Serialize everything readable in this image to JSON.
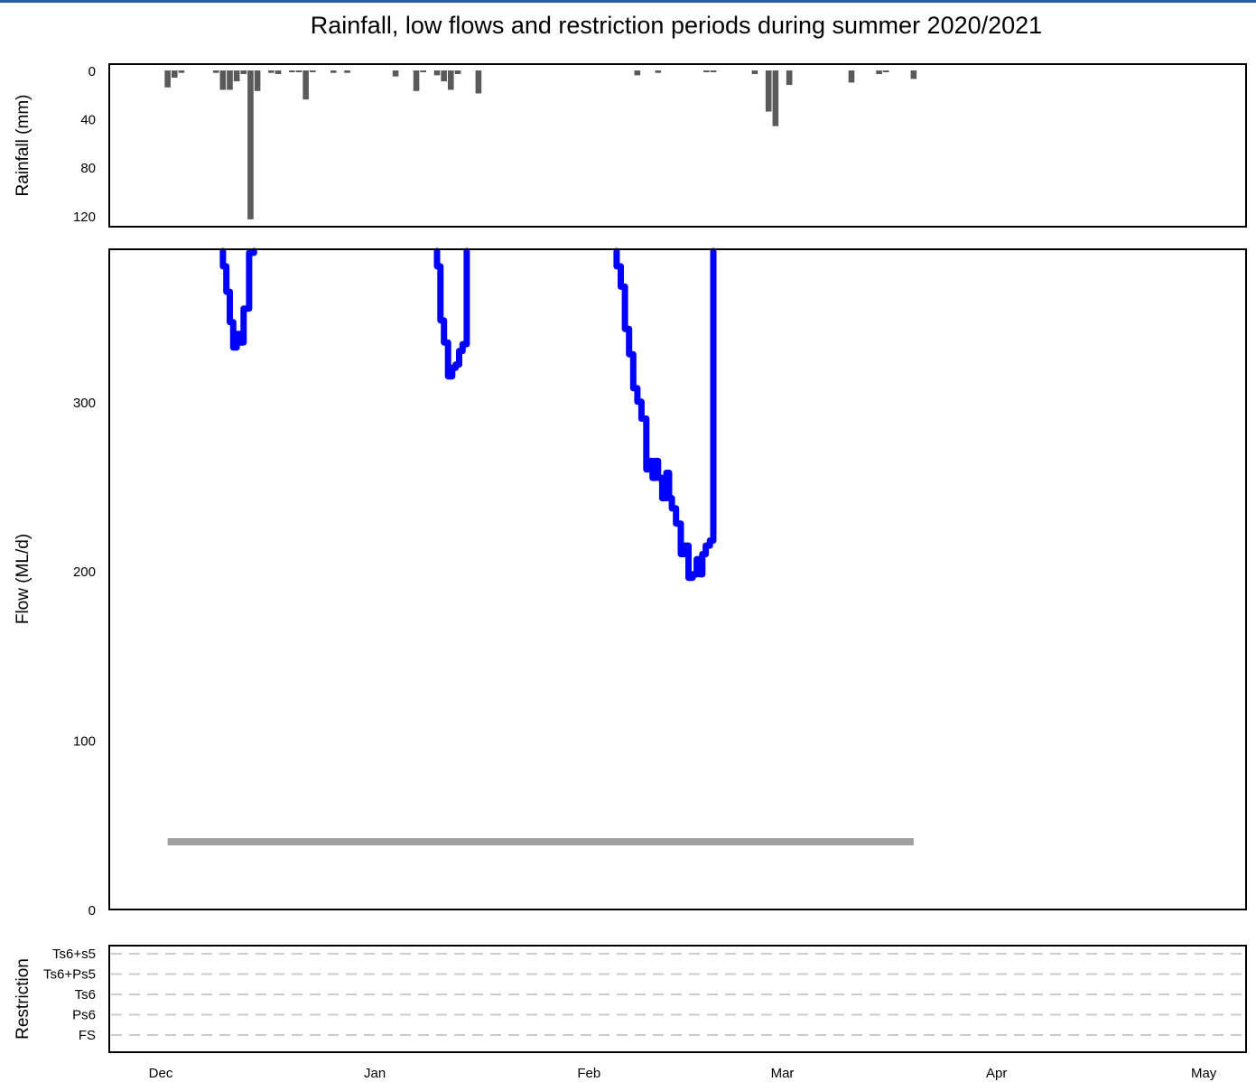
{
  "title": "Rainfall, low flows and restriction periods during summer 2020/2021",
  "colors": {
    "rain_bar": "#5a5a5a",
    "flow_line": "#0000ff",
    "threshold": "#a0a0a0",
    "restriction_grid": "#cccccc",
    "top_rule": "#2a5caa"
  },
  "chart_data": [
    {
      "type": "bar",
      "panel": "rainfall",
      "ylabel": "Rainfall (mm)",
      "ylim": [
        0,
        125
      ],
      "y_inverted": true,
      "yticks": [
        "0",
        "40",
        "80",
        "120"
      ],
      "x_unit": "days since 1 Dec 2020",
      "x_ticks": [
        "Dec",
        "Jan",
        "Feb",
        "Mar",
        "Apr",
        "May"
      ],
      "bars": [
        {
          "x": 1,
          "y": 14
        },
        {
          "x": 2,
          "y": 6
        },
        {
          "x": 3,
          "y": 2
        },
        {
          "x": 8,
          "y": 2
        },
        {
          "x": 9,
          "y": 16
        },
        {
          "x": 10,
          "y": 16
        },
        {
          "x": 11,
          "y": 9
        },
        {
          "x": 12,
          "y": 3
        },
        {
          "x": 13,
          "y": 123
        },
        {
          "x": 14,
          "y": 17
        },
        {
          "x": 16,
          "y": 2
        },
        {
          "x": 17,
          "y": 3
        },
        {
          "x": 19,
          "y": 1
        },
        {
          "x": 20,
          "y": 1
        },
        {
          "x": 21,
          "y": 24
        },
        {
          "x": 22,
          "y": 1
        },
        {
          "x": 25,
          "y": 2
        },
        {
          "x": 27,
          "y": 2
        },
        {
          "x": 34,
          "y": 5
        },
        {
          "x": 37,
          "y": 17
        },
        {
          "x": 38,
          "y": 1
        },
        {
          "x": 40,
          "y": 4
        },
        {
          "x": 41,
          "y": 9
        },
        {
          "x": 42,
          "y": 16
        },
        {
          "x": 43,
          "y": 3
        },
        {
          "x": 46,
          "y": 19
        },
        {
          "x": 69,
          "y": 4
        },
        {
          "x": 72,
          "y": 2
        },
        {
          "x": 79,
          "y": 1
        },
        {
          "x": 80,
          "y": 1
        },
        {
          "x": 86,
          "y": 3
        },
        {
          "x": 88,
          "y": 34
        },
        {
          "x": 89,
          "y": 46
        },
        {
          "x": 91,
          "y": 12
        },
        {
          "x": 100,
          "y": 10
        },
        {
          "x": 104,
          "y": 3
        },
        {
          "x": 105,
          "y": 1
        },
        {
          "x": 109,
          "y": 7
        }
      ]
    },
    {
      "type": "line",
      "panel": "flow",
      "ylabel": "Flow (ML/d)",
      "ylim": [
        0,
        390
      ],
      "yticks": [
        "0",
        "100",
        "200",
        "300"
      ],
      "x_unit": "days since 1 Dec 2020",
      "x_ticks": [
        "Dec",
        "Jan",
        "Feb",
        "Mar",
        "Apr",
        "May"
      ],
      "series": [
        {
          "segments": [
            [
              [
                9.0,
                390
              ],
              [
                9.0,
                380
              ],
              [
                9.5,
                380
              ],
              [
                9.5,
                365
              ],
              [
                10.0,
                365
              ],
              [
                10.0,
                347
              ],
              [
                10.5,
                347
              ],
              [
                10.5,
                332
              ],
              [
                11.0,
                332
              ],
              [
                11.0,
                340
              ],
              [
                11.5,
                340
              ],
              [
                11.5,
                335
              ],
              [
                12.0,
                335
              ],
              [
                12.0,
                355
              ],
              [
                12.8,
                355
              ],
              [
                12.8,
                388
              ],
              [
                13.5,
                388
              ],
              [
                13.5,
                392
              ]
            ],
            [
              [
                40.0,
                390
              ],
              [
                40.0,
                380
              ],
              [
                40.5,
                380
              ],
              [
                40.5,
                348
              ],
              [
                41.0,
                348
              ],
              [
                41.0,
                335
              ],
              [
                41.6,
                335
              ],
              [
                41.6,
                315
              ],
              [
                42.2,
                315
              ],
              [
                42.2,
                320
              ],
              [
                42.7,
                320
              ],
              [
                42.7,
                322
              ],
              [
                43.2,
                322
              ],
              [
                43.2,
                330
              ],
              [
                43.7,
                330
              ],
              [
                43.7,
                334
              ],
              [
                44.3,
                334
              ],
              [
                44.3,
                392
              ]
            ],
            [
              [
                66.0,
                390
              ],
              [
                66.0,
                380
              ],
              [
                66.6,
                380
              ],
              [
                66.6,
                368
              ],
              [
                67.2,
                368
              ],
              [
                67.2,
                343
              ],
              [
                67.8,
                343
              ],
              [
                67.8,
                328
              ],
              [
                68.4,
                328
              ],
              [
                68.4,
                308
              ],
              [
                69.0,
                308
              ],
              [
                69.0,
                300
              ],
              [
                69.6,
                300
              ],
              [
                69.6,
                290
              ],
              [
                70.3,
                290
              ],
              [
                70.3,
                260
              ],
              [
                70.8,
                260
              ],
              [
                70.8,
                265
              ],
              [
                71.2,
                265
              ],
              [
                71.2,
                255
              ],
              [
                71.6,
                255
              ],
              [
                71.6,
                265
              ],
              [
                72.0,
                265
              ],
              [
                72.0,
                255
              ],
              [
                72.6,
                255
              ],
              [
                72.6,
                243
              ],
              [
                73.2,
                243
              ],
              [
                73.2,
                258
              ],
              [
                73.6,
                258
              ],
              [
                73.6,
                243
              ],
              [
                74.0,
                243
              ],
              [
                74.0,
                237
              ],
              [
                74.6,
                237
              ],
              [
                74.6,
                228
              ],
              [
                75.3,
                228
              ],
              [
                75.3,
                210
              ],
              [
                75.9,
                210
              ],
              [
                75.9,
                215
              ],
              [
                76.4,
                215
              ],
              [
                76.4,
                196
              ],
              [
                77.0,
                196
              ],
              [
                77.0,
                198
              ],
              [
                77.6,
                198
              ],
              [
                77.6,
                207
              ],
              [
                78.0,
                207
              ],
              [
                78.0,
                198
              ],
              [
                78.4,
                198
              ],
              [
                78.4,
                210
              ],
              [
                78.9,
                210
              ],
              [
                78.9,
                215
              ],
              [
                79.5,
                215
              ],
              [
                79.5,
                218
              ],
              [
                80.0,
                218
              ],
              [
                80.0,
                390
              ]
            ]
          ]
        },
        {
          "name": "",
          "type": "threshold",
          "x": [
            1,
            109
          ],
          "y": 40
        }
      ]
    },
    {
      "type": "scatter",
      "panel": "restriction",
      "ylabel": "Restriction",
      "levels": [
        "Ts6+s5",
        "Ts6+Ps5",
        "Ts6",
        "Ps6",
        "FS"
      ],
      "grid": "dashed",
      "x_ticks": [
        "Dec",
        "Jan",
        "Feb",
        "Mar",
        "Apr",
        "May"
      ],
      "points": []
    }
  ]
}
